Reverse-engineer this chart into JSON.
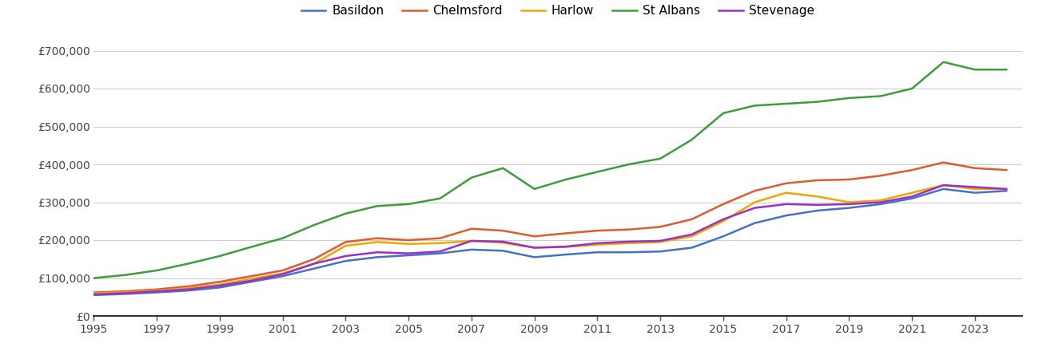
{
  "years": [
    1995,
    1996,
    1997,
    1998,
    1999,
    2000,
    2001,
    2002,
    2003,
    2004,
    2005,
    2006,
    2007,
    2008,
    2009,
    2010,
    2011,
    2012,
    2013,
    2014,
    2015,
    2016,
    2017,
    2018,
    2019,
    2020,
    2021,
    2022,
    2023,
    2024
  ],
  "Basildon": [
    55000,
    58000,
    62000,
    67000,
    75000,
    90000,
    105000,
    125000,
    145000,
    155000,
    160000,
    165000,
    175000,
    172000,
    155000,
    162000,
    168000,
    168000,
    170000,
    180000,
    210000,
    245000,
    265000,
    278000,
    285000,
    295000,
    310000,
    335000,
    325000,
    330000
  ],
  "Chelmsford": [
    62000,
    65000,
    70000,
    78000,
    90000,
    105000,
    120000,
    150000,
    195000,
    205000,
    200000,
    205000,
    230000,
    225000,
    210000,
    218000,
    225000,
    228000,
    235000,
    255000,
    295000,
    330000,
    350000,
    358000,
    360000,
    370000,
    385000,
    405000,
    390000,
    385000
  ],
  "Harlow": [
    60000,
    62000,
    67000,
    73000,
    83000,
    98000,
    112000,
    138000,
    185000,
    195000,
    190000,
    192000,
    198000,
    193000,
    180000,
    182000,
    188000,
    192000,
    195000,
    210000,
    250000,
    300000,
    325000,
    315000,
    300000,
    305000,
    325000,
    345000,
    335000,
    335000
  ],
  "St Albans": [
    100000,
    108000,
    120000,
    138000,
    158000,
    182000,
    205000,
    240000,
    270000,
    290000,
    295000,
    310000,
    365000,
    390000,
    335000,
    360000,
    380000,
    400000,
    415000,
    465000,
    535000,
    555000,
    560000,
    565000,
    575000,
    580000,
    600000,
    670000,
    650000,
    650000
  ],
  "Stevenage": [
    57000,
    60000,
    65000,
    70000,
    80000,
    93000,
    110000,
    138000,
    158000,
    168000,
    165000,
    170000,
    198000,
    196000,
    180000,
    183000,
    192000,
    196000,
    198000,
    215000,
    255000,
    285000,
    295000,
    293000,
    295000,
    300000,
    315000,
    345000,
    340000,
    335000
  ],
  "colors": {
    "Basildon": "#4472c4",
    "Chelmsford": "#e05a2b",
    "Harlow": "#f0a500",
    "St Albans": "#3a9e3a",
    "Stevenage": "#9b30c8"
  },
  "ylim": [
    0,
    720000
  ],
  "yticks": [
    0,
    100000,
    200000,
    300000,
    400000,
    500000,
    600000,
    700000
  ],
  "ytick_labels": [
    "£0",
    "£100,000",
    "£200,000",
    "£300,000",
    "£400,000",
    "£500,000",
    "£600,000",
    "£700,000"
  ],
  "xticks": [
    1995,
    1997,
    1999,
    2001,
    2003,
    2005,
    2007,
    2009,
    2011,
    2013,
    2015,
    2017,
    2019,
    2021,
    2023
  ],
  "xlim": [
    1995,
    2024.5
  ],
  "linewidth": 1.8,
  "background_color": "#ffffff",
  "grid_color": "#cccccc"
}
